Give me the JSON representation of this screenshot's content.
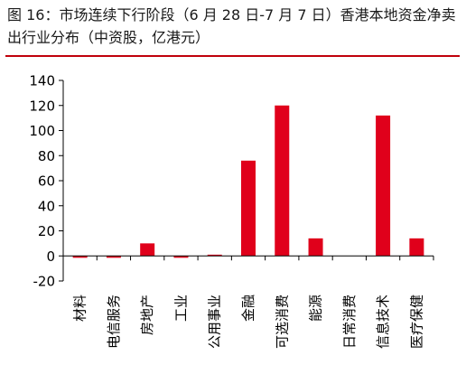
{
  "figure": {
    "title": "图 16：市场连续下行阶段（6 月 28 日-7 月 7 日）香港本地资金净卖出行业分布（中资股，亿港元）"
  },
  "colors": {
    "bar": "#e0001b",
    "accent_rule": "#c0000b",
    "axis": "#000000"
  },
  "chart_data": {
    "type": "bar",
    "title": "",
    "xlabel": "",
    "ylabel": "",
    "categories": [
      "材料",
      "电信服务",
      "房地产",
      "工业",
      "公用事业",
      "金融",
      "可选消费",
      "能源",
      "日常消费",
      "信息技术",
      "医疗保健"
    ],
    "values": [
      -1.5,
      -1.5,
      10,
      -1.5,
      1,
      76,
      120,
      14,
      0,
      112,
      14
    ],
    "ylim": [
      -20,
      140
    ],
    "yticks": [
      "-20",
      "0",
      "20",
      "40",
      "60",
      "80",
      "100",
      "120",
      "140"
    ],
    "grid": false,
    "legend": "none"
  }
}
